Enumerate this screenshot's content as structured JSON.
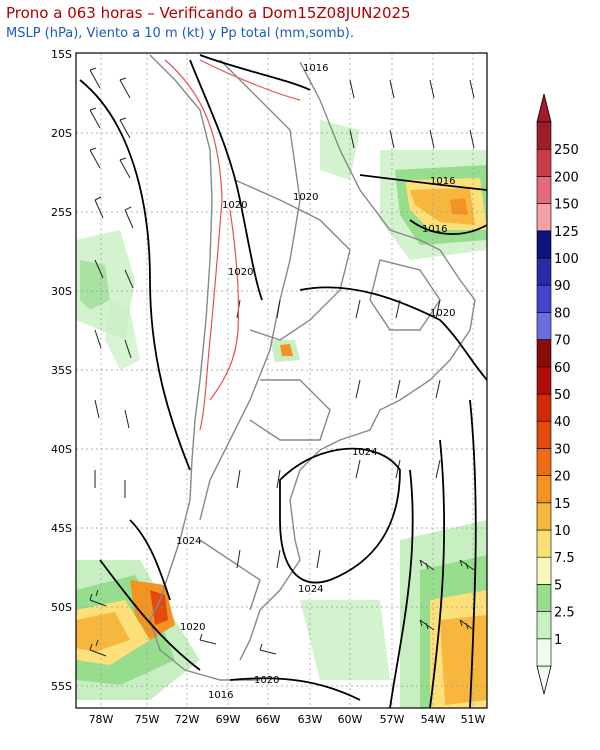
{
  "header": {
    "title": "Prono a 063 horas – Verificando a Dom15Z08JUN2025",
    "subtitle": "MSLP (hPa), Viento a 10 m (kt) y Pp total (mm,somb)."
  },
  "axes": {
    "lat_labels": [
      "15S",
      "20S",
      "25S",
      "30S",
      "35S",
      "40S",
      "45S",
      "50S",
      "55S"
    ],
    "lon_labels": [
      "78W",
      "75W",
      "72W",
      "69W",
      "66W",
      "63W",
      "60W",
      "57W",
      "54W",
      "51W"
    ]
  },
  "isobars": {
    "labels": [
      "1016",
      "1020",
      "1016",
      "1016",
      "1020",
      "1020",
      "1020",
      "1024",
      "1024",
      "1024",
      "1020",
      "1020",
      "1016"
    ]
  },
  "colorbar": {
    "labels": [
      "1",
      "2.5",
      "5",
      "7.5",
      "10",
      "15",
      "20",
      "30",
      "40",
      "50",
      "60",
      "70",
      "80",
      "90",
      "100",
      "125",
      "150",
      "200",
      "250"
    ],
    "colors": [
      "#f2fbef",
      "#c8efc2",
      "#97dd8e",
      "#fdf7be",
      "#fde07a",
      "#f7b73e",
      "#f39322",
      "#ef6a14",
      "#e24a10",
      "#d42a0c",
      "#b20d0d",
      "#8c0a0a",
      "#6b6ee0",
      "#4444cc",
      "#2a2aa8",
      "#12127f",
      "#f4a0a8",
      "#e46c78",
      "#c83c4c",
      "#a01c28"
    ]
  }
}
